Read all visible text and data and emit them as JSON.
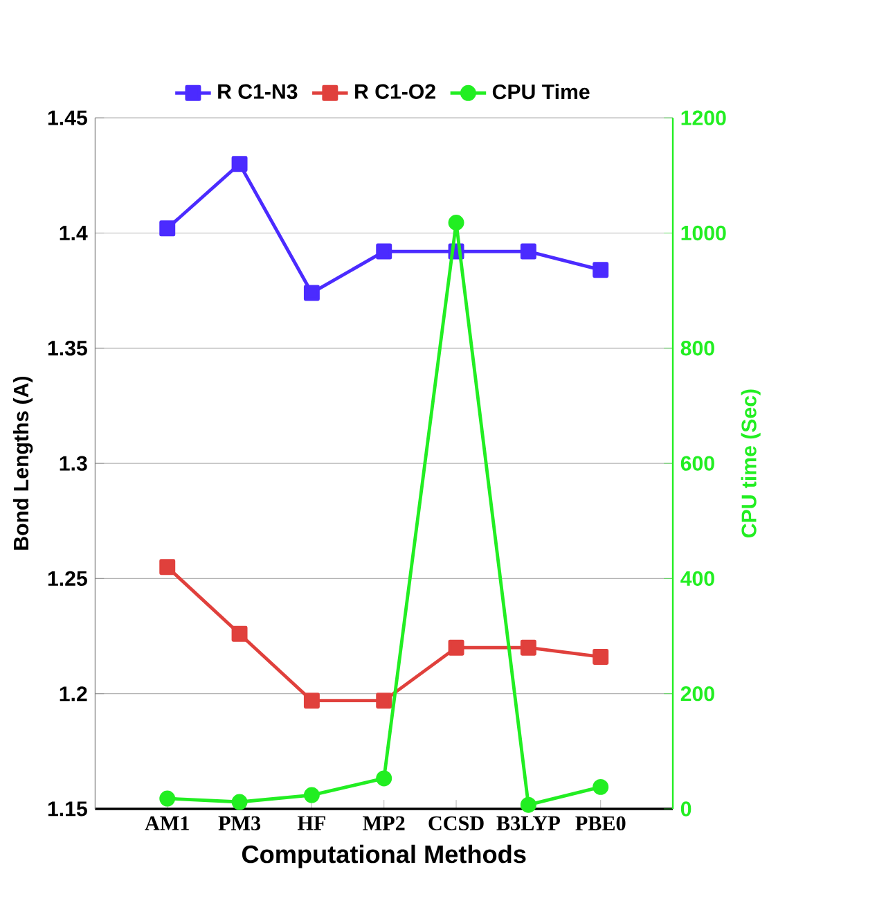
{
  "chart_data": {
    "type": "line",
    "xlabel": "Computational Methods",
    "ylabel": "Bond Lengths (A)",
    "y2label": "CPU time (Sec)",
    "categories": [
      "AM1",
      "PM3",
      "HF",
      "MP2",
      "CCSD",
      "B3LYP",
      "PBE0"
    ],
    "series": [
      {
        "name": "R C1-N3",
        "color": "#4b2bff",
        "marker": "square",
        "values": [
          1.402,
          1.43,
          1.374,
          1.392,
          1.392,
          1.392,
          1.384
        ]
      },
      {
        "name": "R C1-O2",
        "color": "#e0403c",
        "marker": "square",
        "values": [
          1.255,
          1.226,
          1.197,
          1.197,
          1.22,
          1.22,
          1.216
        ]
      },
      {
        "name": "CPU Time",
        "color": "#22ee22",
        "marker": "circle",
        "axis": "y2",
        "values": [
          18,
          12,
          24,
          53,
          1018,
          7,
          38
        ]
      }
    ],
    "ylim": [
      1.15,
      1.45
    ],
    "yticks": [
      1.15,
      1.2,
      1.25,
      1.3,
      1.35,
      1.4,
      1.45
    ],
    "y2lim": [
      0,
      1200
    ],
    "y2ticks": [
      0,
      200,
      400,
      600,
      800,
      1000,
      1200
    ],
    "grid": "y",
    "legend": "top",
    "line_style": "solid"
  }
}
